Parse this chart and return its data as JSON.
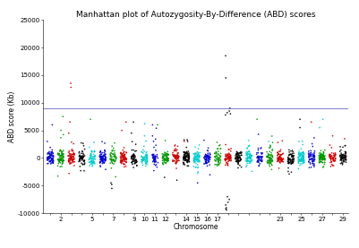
{
  "title": "Manhattan plot of Autozygosity-By-Difference (ABD) scores",
  "xlabel": "Chromosome",
  "ylabel": "ABD score (Kb)",
  "ylim": [
    -10000,
    25000
  ],
  "yticks": [
    -10000,
    -5000,
    0,
    5000,
    10000,
    15000,
    20000,
    25000
  ],
  "threshold_line": 9000,
  "threshold_color": "#5555bb",
  "n_chromosomes": 29,
  "colors": [
    "#0000cc",
    "#009900",
    "#cc0000",
    "#000000",
    "#00cccc"
  ],
  "background_color": "#ffffff",
  "seed": 12345,
  "title_fontsize": 6.5,
  "axis_fontsize": 5.5,
  "tick_fontsize": 5.0,
  "special_peaks": [
    {
      "chrom": 3,
      "y": 13500,
      "color": "#cc0000"
    },
    {
      "chrom": 3,
      "y": 12800,
      "color": "#cc0000"
    },
    {
      "chrom": 3,
      "y": 6500,
      "color": "#cc0000"
    },
    {
      "chrom": 3,
      "y": 4500,
      "color": "#cc0000"
    },
    {
      "chrom": 18,
      "y": 18500,
      "color": "#000000"
    },
    {
      "chrom": 18,
      "y": 14500,
      "color": "#000000"
    },
    {
      "chrom": 18,
      "y": 9000,
      "color": "#000000"
    },
    {
      "chrom": 18,
      "y": 8500,
      "color": "#000000"
    },
    {
      "chrom": 18,
      "y": 8200,
      "color": "#000000"
    },
    {
      "chrom": 18,
      "y": 8000,
      "color": "#000000"
    },
    {
      "chrom": 18,
      "y": 7800,
      "color": "#000000"
    },
    {
      "chrom": 18,
      "y": -7000,
      "color": "#000000"
    },
    {
      "chrom": 18,
      "y": -7500,
      "color": "#000000"
    },
    {
      "chrom": 18,
      "y": -8000,
      "color": "#000000"
    },
    {
      "chrom": 18,
      "y": -8500,
      "color": "#000000"
    },
    {
      "chrom": 18,
      "y": -9000,
      "color": "#000000"
    },
    {
      "chrom": 18,
      "y": -9200,
      "color": "#000000"
    },
    {
      "chrom": 18,
      "y": -9400,
      "color": "#000000"
    },
    {
      "chrom": 7,
      "y": -5500,
      "color": "#000000"
    },
    {
      "chrom": 7,
      "y": -4500,
      "color": "#000000"
    },
    {
      "chrom": 7,
      "y": -4800,
      "color": "#000000"
    },
    {
      "chrom": 1,
      "y": 6000,
      "color": "#0000cc"
    },
    {
      "chrom": 2,
      "y": 7500,
      "color": "#009900"
    },
    {
      "chrom": 2,
      "y": 5000,
      "color": "#009900"
    },
    {
      "chrom": 5,
      "y": 7000,
      "color": "#009900"
    },
    {
      "chrom": 8,
      "y": 6500,
      "color": "#cc0000"
    },
    {
      "chrom": 8,
      "y": 5000,
      "color": "#cc0000"
    },
    {
      "chrom": 9,
      "y": 6500,
      "color": "#000000"
    },
    {
      "chrom": 9,
      "y": 4500,
      "color": "#000000"
    },
    {
      "chrom": 10,
      "y": 6200,
      "color": "#00cccc"
    },
    {
      "chrom": 11,
      "y": 6000,
      "color": "#0000cc"
    },
    {
      "chrom": 11,
      "y": 4000,
      "color": "#0000cc"
    },
    {
      "chrom": 11,
      "y": 6000,
      "color": "#009900"
    },
    {
      "chrom": 12,
      "y": -3500,
      "color": "#000000"
    },
    {
      "chrom": 13,
      "y": -4000,
      "color": "#000000"
    },
    {
      "chrom": 14,
      "y": 3000,
      "color": "#cc0000"
    },
    {
      "chrom": 15,
      "y": -4500,
      "color": "#0000cc"
    },
    {
      "chrom": 21,
      "y": 7000,
      "color": "#009900"
    },
    {
      "chrom": 22,
      "y": 3000,
      "color": "#00cccc"
    },
    {
      "chrom": 25,
      "y": 7000,
      "color": "#000000"
    },
    {
      "chrom": 25,
      "y": 5500,
      "color": "#000000"
    },
    {
      "chrom": 26,
      "y": 6500,
      "color": "#cc0000"
    },
    {
      "chrom": 27,
      "y": 7000,
      "color": "#00cccc"
    },
    {
      "chrom": 27,
      "y": 5500,
      "color": "#00cccc"
    },
    {
      "chrom": 28,
      "y": 4000,
      "color": "#cc0000"
    },
    {
      "chrom": 29,
      "y": 3500,
      "color": "#cc0000"
    }
  ],
  "shown_labels": [
    2,
    5,
    7,
    9,
    10,
    11,
    12,
    14,
    15,
    16,
    17,
    23,
    25,
    27,
    29
  ]
}
